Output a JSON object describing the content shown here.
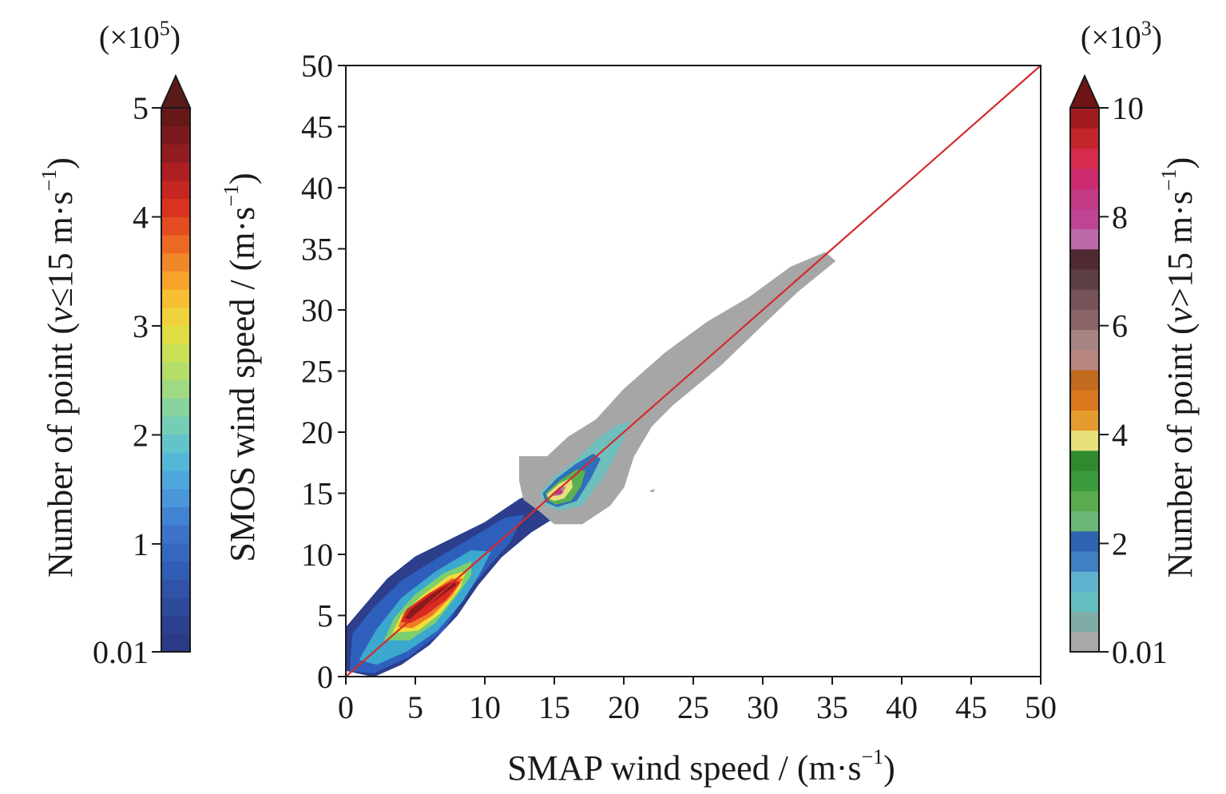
{
  "chart_data": {
    "type": "heatmap",
    "xlabel": "SMAP wind speed / (m·s",
    "xlabel_sup": "−1",
    "xlabel_close": ")",
    "ylabel": "SMOS wind speed / (m·s",
    "ylabel_sup": "−1",
    "ylabel_close": ")",
    "xlim": [
      0,
      50
    ],
    "ylim": [
      0,
      50
    ],
    "x_ticks": [
      0,
      5,
      10,
      15,
      20,
      25,
      30,
      35,
      40,
      45,
      50
    ],
    "y_ticks": [
      0,
      5,
      10,
      15,
      20,
      25,
      30,
      35,
      40,
      45,
      50
    ],
    "reference_line": {
      "x": [
        0,
        50
      ],
      "y": [
        0,
        50
      ],
      "color": "#d62a2a"
    },
    "grid": false,
    "density_regions": [
      {
        "name": "v ≤ 15",
        "levels": [
          {
            "level": 0.01,
            "color": "#2c3e8c",
            "polygon": [
              [
                0,
                0.5
              ],
              [
                0,
                4
              ],
              [
                1.5,
                6
              ],
              [
                3,
                8
              ],
              [
                5,
                9.8
              ],
              [
                7.5,
                11.2
              ],
              [
                10,
                12.6
              ],
              [
                12.5,
                14.5
              ],
              [
                13.5,
                15
              ],
              [
                15.2,
                13.6
              ],
              [
                15,
                13
              ],
              [
                13.3,
                11.8
              ],
              [
                11.2,
                9.8
              ],
              [
                9.5,
                7.5
              ],
              [
                8,
                5
              ],
              [
                6,
                2.6
              ],
              [
                4,
                1
              ],
              [
                2,
                0
              ]
            ]
          },
          {
            "level": 0.3,
            "color": "#2f5fbd",
            "polygon": [
              [
                0.3,
                0.5
              ],
              [
                0.5,
                3.5
              ],
              [
                2,
                5.6
              ],
              [
                4,
                7.8
              ],
              [
                6.5,
                9.6
              ],
              [
                9,
                11.3
              ],
              [
                11.5,
                13
              ],
              [
                12.8,
                13.2
              ],
              [
                11.8,
                11
              ],
              [
                10,
                8.7
              ],
              [
                8.5,
                6.5
              ],
              [
                7,
                3.8
              ],
              [
                4.5,
                1.6
              ],
              [
                2,
                0.3
              ]
            ]
          },
          {
            "level": 1.0,
            "color": "#3ba8cf",
            "polygon": [
              [
                1,
                1.4
              ],
              [
                2.2,
                3.8
              ],
              [
                4,
                6.4
              ],
              [
                6.5,
                8.6
              ],
              [
                9,
                10.3
              ],
              [
                10.4,
                10.2
              ],
              [
                9.6,
                8.4
              ],
              [
                8.4,
                6.2
              ],
              [
                6.6,
                3.8
              ],
              [
                4.4,
                2.1
              ],
              [
                2.2,
                1
              ]
            ]
          },
          {
            "level": 2.0,
            "color": "#7dcf6c",
            "polygon": [
              [
                2.8,
                3
              ],
              [
                3.5,
                4.8
              ],
              [
                5,
                6.7
              ],
              [
                7,
                8.4
              ],
              [
                9,
                9.4
              ],
              [
                9,
                8.3
              ],
              [
                7.8,
                6.4
              ],
              [
                6.4,
                4.4
              ],
              [
                4.6,
                3
              ]
            ]
          },
          {
            "level": 3.0,
            "color": "#f3dd3a",
            "polygon": [
              [
                3.4,
                3.6
              ],
              [
                4,
                5
              ],
              [
                5.5,
                6.6
              ],
              [
                7.4,
                8.2
              ],
              [
                8.6,
                8.6
              ],
              [
                8.2,
                7.2
              ],
              [
                6.8,
                5.2
              ],
              [
                5.2,
                3.8
              ]
            ]
          },
          {
            "level": 3.6,
            "color": "#ef7a26",
            "polygon": [
              [
                3.8,
                4.1
              ],
              [
                4.2,
                5.2
              ],
              [
                5.8,
                6.6
              ],
              [
                7.6,
                8
              ],
              [
                8.4,
                8
              ],
              [
                7.6,
                6.6
              ],
              [
                6.2,
                5
              ],
              [
                4.8,
                4
              ]
            ]
          },
          {
            "level": 4.0,
            "color": "#dc2a23",
            "polygon": [
              [
                4,
                4.5
              ],
              [
                4.4,
                5.5
              ],
              [
                6,
                6.8
              ],
              [
                7.8,
                7.9
              ],
              [
                8.2,
                7.7
              ],
              [
                7.2,
                6.3
              ],
              [
                5.8,
                5.1
              ],
              [
                4.6,
                4.4
              ]
            ]
          },
          {
            "level": 4.6,
            "color": "#8c1a1a",
            "polygon": [
              [
                4.3,
                4.8
              ],
              [
                4.7,
                5.5
              ],
              [
                6.3,
                6.8
              ],
              [
                7.8,
                7.8
              ],
              [
                7.9,
                7.5
              ],
              [
                6.6,
                6.4
              ],
              [
                5.4,
                5.4
              ],
              [
                4.6,
                4.7
              ]
            ]
          }
        ]
      },
      {
        "name": "v > 15",
        "levels": [
          {
            "level": 0.01,
            "color": "#a6a6a6",
            "polygon": [
              [
                12.5,
                18
              ],
              [
                14.5,
                18
              ],
              [
                16,
                19.6
              ],
              [
                18,
                21
              ],
              [
                20,
                23.5
              ],
              [
                23,
                26.5
              ],
              [
                26,
                29
              ],
              [
                29,
                31
              ],
              [
                32,
                33.5
              ],
              [
                34.5,
                34.7
              ],
              [
                35.2,
                34
              ],
              [
                32.5,
                31.5
              ],
              [
                30,
                28.8
              ],
              [
                27,
                25.5
              ],
              [
                23.5,
                22.2
              ],
              [
                22,
                20.5
              ],
              [
                20.7,
                18
              ],
              [
                20,
                15.5
              ],
              [
                19,
                14
              ],
              [
                17,
                12.5
              ],
              [
                15,
                12.5
              ],
              [
                14,
                13.5
              ],
              [
                12.8,
                14.5
              ],
              [
                12.5,
                16
              ]
            ]
          },
          {
            "level": 0.01,
            "color": "#a6a6a6",
            "polygon": [
              [
                21.9,
                15.2
              ],
              [
                22.2,
                15.3
              ],
              [
                22.1,
                15.1
              ]
            ]
          },
          {
            "level": 0.5,
            "color": "#6fbfbf",
            "polygon": [
              [
                14,
                15
              ],
              [
                15,
                16.3
              ],
              [
                16.5,
                17.6
              ],
              [
                18,
                19.3
              ],
              [
                19.6,
                20.6
              ],
              [
                20.4,
                20.8
              ],
              [
                19.6,
                18.6
              ],
              [
                18.6,
                16.5
              ],
              [
                17,
                14
              ],
              [
                15.4,
                13.6
              ],
              [
                14.4,
                14
              ]
            ]
          },
          {
            "level": 2.0,
            "color": "#2f6fba",
            "polygon": [
              [
                14.2,
                15
              ],
              [
                15.2,
                16.2
              ],
              [
                16.6,
                17.4
              ],
              [
                17.8,
                18.2
              ],
              [
                18.3,
                17.8
              ],
              [
                17.6,
                16.2
              ],
              [
                16.6,
                14.4
              ],
              [
                15.2,
                13.9
              ],
              [
                14.4,
                14.3
              ]
            ]
          },
          {
            "level": 3.0,
            "color": "#5ab04e",
            "polygon": [
              [
                14.4,
                15
              ],
              [
                15.4,
                16
              ],
              [
                16.6,
                16.9
              ],
              [
                17.2,
                16.8
              ],
              [
                16.9,
                15.6
              ],
              [
                16.2,
                14.4
              ],
              [
                15.1,
                14.1
              ],
              [
                14.5,
                14.5
              ]
            ]
          },
          {
            "level": 4.5,
            "color": "#e6df7a",
            "polygon": [
              [
                14.5,
                14.9
              ],
              [
                15.4,
                15.8
              ],
              [
                16.2,
                16.2
              ],
              [
                16.3,
                15.5
              ],
              [
                15.7,
                14.6
              ],
              [
                15,
                14.4
              ],
              [
                14.6,
                14.6
              ]
            ]
          },
          {
            "level": 6.0,
            "color": "#b3868a",
            "polygon": [
              [
                14.8,
                14.9
              ],
              [
                15.4,
                15.5
              ],
              [
                15.8,
                15.5
              ],
              [
                15.5,
                14.9
              ],
              [
                15,
                14.8
              ]
            ]
          },
          {
            "level": 8.0,
            "color": "#c2338e",
            "polygon": [
              [
                15,
                15
              ],
              [
                15.4,
                15.3
              ],
              [
                15.6,
                15.1
              ],
              [
                15.3,
                14.9
              ]
            ]
          }
        ]
      }
    ],
    "colorbars": [
      {
        "label": "Number of point (",
        "label_var": "v",
        "label_cond": "≤15 m·s",
        "label_sup": "−1",
        "label_close": ")",
        "exponent_prefix": "(×10",
        "exponent_sup": "5",
        "exponent_suffix": ")",
        "ticks": [
          0.01,
          1,
          2,
          3,
          4,
          5
        ],
        "tick_labels": [
          "0.01",
          "1",
          "2",
          "3",
          "4",
          "5"
        ],
        "range": [
          0.01,
          5
        ],
        "extend": "max",
        "extend_color": "#5a1a1a",
        "colors": [
          "#2b3a85",
          "#2c4190",
          "#2e4a9b",
          "#3053a8",
          "#325db4",
          "#3667bf",
          "#3c73c8",
          "#4283d2",
          "#4a96db",
          "#4ea8dd",
          "#55b7d8",
          "#62c4ca",
          "#74cdb5",
          "#89d39c",
          "#9fd983",
          "#b5dd6a",
          "#cbe055",
          "#e0de46",
          "#efd23c",
          "#f6be33",
          "#f6a42c",
          "#f28727",
          "#ec6923",
          "#e34d21",
          "#d9321f",
          "#c62622",
          "#ad1f22",
          "#931c20",
          "#7b1a1c",
          "#661819"
        ]
      },
      {
        "label": "Number of point (",
        "label_var": "v",
        "label_cond": ">15 m·s",
        "label_sup": "−1",
        "label_close": ")",
        "exponent_prefix": "(×10",
        "exponent_sup": "3",
        "exponent_suffix": ")",
        "ticks": [
          0.01,
          2,
          4,
          6,
          8,
          10
        ],
        "tick_labels": [
          "0.01",
          "2",
          "4",
          "6",
          "8",
          "10"
        ],
        "range": [
          0.01,
          10
        ],
        "extend": "max",
        "extend_color": "#6e1414",
        "colors": [
          "#a8a8a8",
          "#80aca8",
          "#63bfbf",
          "#5fb3cf",
          "#3f7fc2",
          "#2f63b0",
          "#6cb776",
          "#5aab4d",
          "#3b9a3c",
          "#2f8a2f",
          "#e5e07a",
          "#e59b2d",
          "#d9781e",
          "#c26a1e",
          "#b8867e",
          "#a58482",
          "#8a6468",
          "#76545a",
          "#5e3e45",
          "#4f2a33",
          "#bc6aa8",
          "#c04496",
          "#c23a84",
          "#cb2a6e",
          "#d62a4e",
          "#c4242c",
          "#a11c1f"
        ]
      }
    ]
  }
}
